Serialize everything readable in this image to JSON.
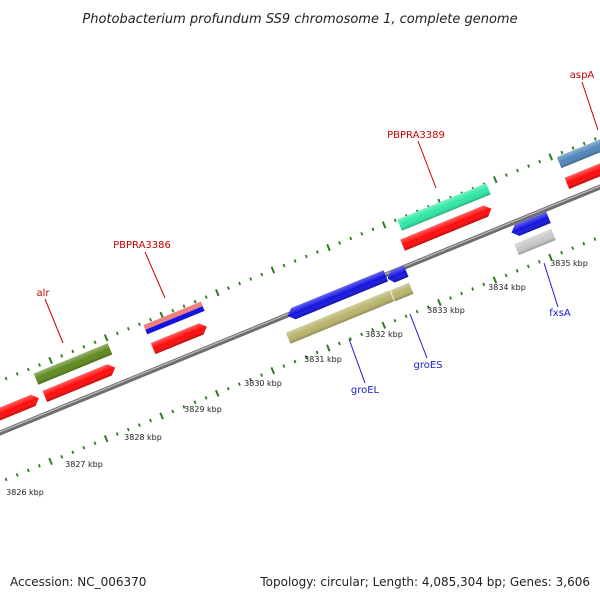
{
  "header": {
    "title": "Photobacterium profundum SS9 chromosome 1, complete genome"
  },
  "footer": {
    "accession": "Accession: NC_006370",
    "summary": "Topology: circular; Length: 4,085,304 bp; Genes: 3,606"
  },
  "scale": {
    "labels": [
      "3826 kbp",
      "3827 kbp",
      "3828 kbp",
      "3829 kbp",
      "3830 kbp",
      "3831 kbp",
      "3832 kbp",
      "3833 kbp",
      "3834 kbp",
      "3835 kbp"
    ]
  },
  "gene_labels": {
    "alr": "alr",
    "pbpra3386": "PBPRA3386",
    "pbpra3389": "PBPRA3389",
    "aspa": "aspA",
    "groel": "groEL",
    "groes": "groES",
    "fxsa": "fxsA"
  },
  "colors": {
    "forward_label": "#cc0000",
    "reverse_label": "#1a1acc",
    "cds": "#ff0a0a",
    "backbone": "#8a8a8a",
    "ticks": "#2e7d1f",
    "alr": "#5e8a1e",
    "pbpra3386_top": "#f08080",
    "pbpra3389": "#2ee8a4",
    "aspa": "#4f86b8",
    "groel": "#1414e0",
    "groel_aux": "#b8b46c",
    "fxsa_aux": "#c8c8c8"
  }
}
